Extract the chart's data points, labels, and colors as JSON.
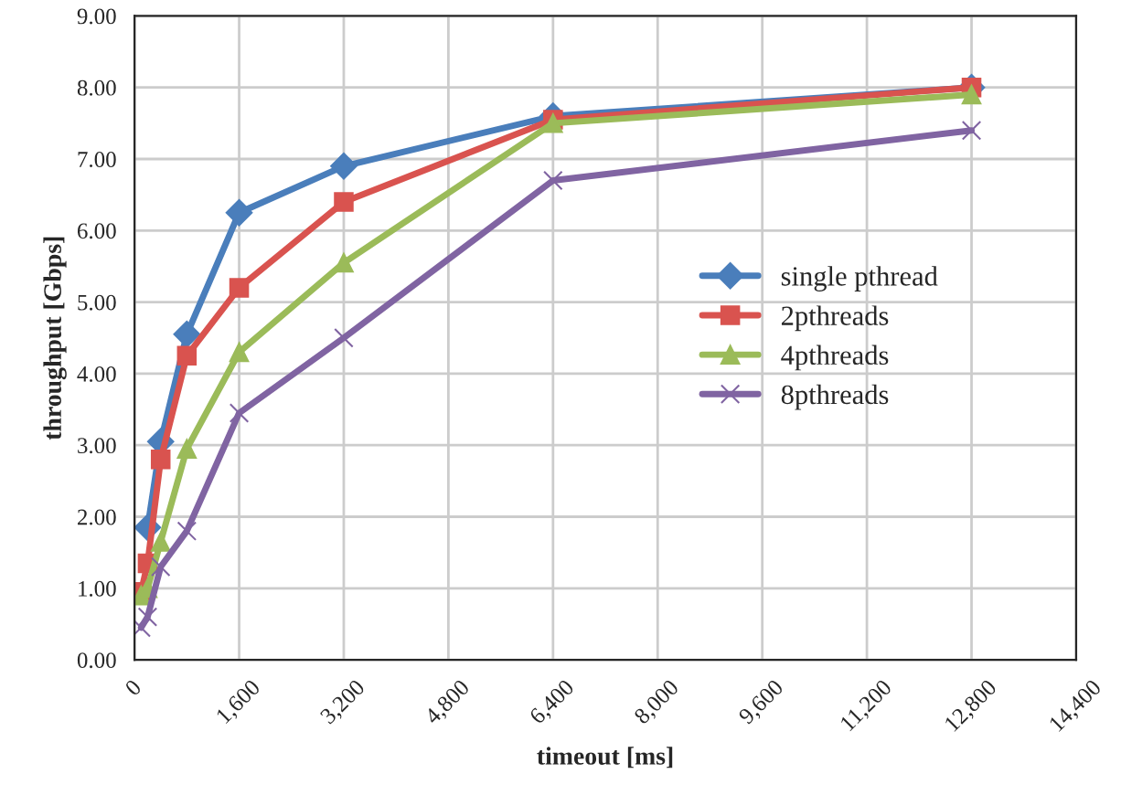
{
  "chart_data": {
    "type": "line",
    "xlabel": "timeout [ms]",
    "ylabel": "throughput [Gbps]",
    "x": [
      100,
      200,
      400,
      800,
      1600,
      3200,
      6400,
      12800
    ],
    "xlim": [
      0,
      14400
    ],
    "xticks": [
      0,
      {
        "value": 1600,
        "label": "1,600"
      },
      {
        "value": 3200,
        "label": "3,200"
      },
      {
        "value": 4800,
        "label": "4,800"
      },
      {
        "value": 6400,
        "label": "6,400"
      },
      {
        "value": 8000,
        "label": "8,000"
      },
      {
        "value": 9600,
        "label": "9,600"
      },
      {
        "value": 11200,
        "label": "11,200"
      },
      {
        "value": 12800,
        "label": "12,800"
      },
      {
        "value": 14400,
        "label": "14,400"
      }
    ],
    "ylim": [
      0,
      9
    ],
    "yticks": [
      {
        "value": 0,
        "label": "0.00"
      },
      {
        "value": 1,
        "label": "1.00"
      },
      {
        "value": 2,
        "label": "2.00"
      },
      {
        "value": 3,
        "label": "3.00"
      },
      {
        "value": 4,
        "label": "4.00"
      },
      {
        "value": 5,
        "label": "5.00"
      },
      {
        "value": 6,
        "label": "6.00"
      },
      {
        "value": 7,
        "label": "7.00"
      },
      {
        "value": 8,
        "label": "8.00"
      },
      {
        "value": 9,
        "label": "9.00"
      }
    ],
    "grid": true,
    "legend": "right",
    "line_style": "solid",
    "series": [
      {
        "name": "single pthread",
        "color": "#4a7ebb",
        "marker": "diamond",
        "values": [
          null,
          1.85,
          3.05,
          4.55,
          6.25,
          6.9,
          7.6,
          8.0
        ]
      },
      {
        "name": "2pthreads",
        "color": "#d9534f",
        "marker": "square",
        "values": [
          0.95,
          1.35,
          2.8,
          4.25,
          5.2,
          6.4,
          7.55,
          8.0
        ]
      },
      {
        "name": "4pthreads",
        "color": "#9bbb59",
        "marker": "triangle",
        "values": [
          0.9,
          1.0,
          1.65,
          2.95,
          4.3,
          5.55,
          7.5,
          7.9
        ]
      },
      {
        "name": "8pthreads",
        "color": "#8064a2",
        "marker": "cross",
        "values": [
          0.45,
          0.6,
          1.3,
          1.8,
          3.45,
          4.5,
          6.7,
          7.4
        ]
      }
    ]
  }
}
